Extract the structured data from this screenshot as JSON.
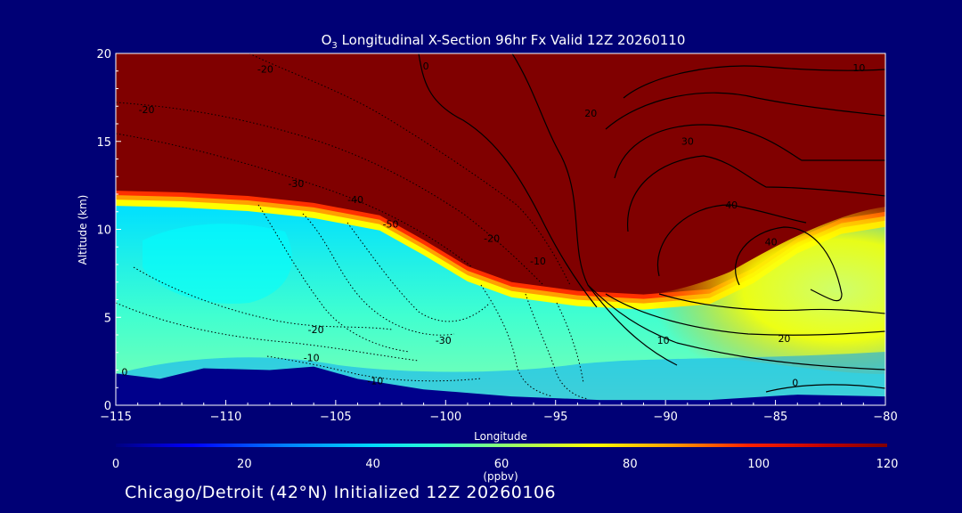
{
  "chart_data": {
    "type": "heatmap",
    "title_prefix": "O",
    "title_subscript": "3",
    "title_rest": " Longitudinal X-Section 96hr  Fx Valid 12Z 20260110",
    "xlabel": "Longitude",
    "ylabel": "Altitude (km)",
    "xlim": [
      -115,
      -80
    ],
    "ylim": [
      0,
      20
    ],
    "x_ticks": [
      -115,
      -110,
      -105,
      -100,
      -95,
      -90,
      -85,
      -80
    ],
    "x_tick_labels": [
      "−115",
      "−110",
      "−105",
      "−100",
      "−95",
      "−90",
      "−85",
      "−80"
    ],
    "y_ticks": [
      0,
      5,
      10,
      15,
      20
    ],
    "y_tick_labels": [
      "0",
      "5",
      "10",
      "15",
      "20"
    ],
    "colorbar": {
      "label": "(ppbv)",
      "range": [
        0,
        120
      ],
      "ticks": [
        0,
        20,
        40,
        60,
        80,
        100,
        120
      ],
      "tick_labels": [
        "0",
        "20",
        "40",
        "60",
        "80",
        "100",
        "120"
      ]
    },
    "colors": {
      "background": "#000075",
      "stratosphere": "#800000",
      "ground": "#00008b"
    },
    "tropopause": [
      {
        "x": -115,
        "y": 12.2
      },
      {
        "x": -112,
        "y": 12.1
      },
      {
        "x": -109,
        "y": 11.9
      },
      {
        "x": -106,
        "y": 11.5
      },
      {
        "x": -103,
        "y": 10.8
      },
      {
        "x": -101,
        "y": 9.4
      },
      {
        "x": -99,
        "y": 7.9
      },
      {
        "x": -97,
        "y": 7.0
      },
      {
        "x": -94,
        "y": 6.5
      },
      {
        "x": -91,
        "y": 6.3
      },
      {
        "x": -88,
        "y": 6.6
      },
      {
        "x": -86,
        "y": 7.8
      },
      {
        "x": -84,
        "y": 9.5
      },
      {
        "x": -82,
        "y": 10.6
      },
      {
        "x": -80,
        "y": 11.0
      }
    ],
    "terrain": [
      {
        "x": -115,
        "y": 1.8
      },
      {
        "x": -113,
        "y": 1.5
      },
      {
        "x": -111,
        "y": 2.1
      },
      {
        "x": -108,
        "y": 2.0
      },
      {
        "x": -106,
        "y": 2.2
      },
      {
        "x": -104,
        "y": 1.5
      },
      {
        "x": -101,
        "y": 0.9
      },
      {
        "x": -97,
        "y": 0.5
      },
      {
        "x": -93,
        "y": 0.3
      },
      {
        "x": -88,
        "y": 0.3
      },
      {
        "x": -84,
        "y": 0.6
      },
      {
        "x": -80,
        "y": 0.5
      }
    ],
    "contour_labels": [
      {
        "text": "-20",
        "x": -113.6,
        "y": 16.6
      },
      {
        "text": "-20",
        "x": -108.2,
        "y": 18.9
      },
      {
        "text": "0",
        "x": -100.9,
        "y": 19.1
      },
      {
        "text": "10",
        "x": -81.2,
        "y": 19.0
      },
      {
        "text": "20",
        "x": -93.4,
        "y": 16.4
      },
      {
        "text": "30",
        "x": -89.0,
        "y": 14.8
      },
      {
        "text": "40",
        "x": -87.0,
        "y": 11.2
      },
      {
        "text": "40",
        "x": -85.2,
        "y": 9.1
      },
      {
        "text": "-30",
        "x": -106.8,
        "y": 12.4
      },
      {
        "text": "-40",
        "x": -104.1,
        "y": 11.5
      },
      {
        "text": "-50",
        "x": -102.5,
        "y": 10.1
      },
      {
        "text": "-20",
        "x": -97.9,
        "y": 9.3
      },
      {
        "text": "-10",
        "x": -95.8,
        "y": 8.0
      },
      {
        "text": "-20",
        "x": -105.9,
        "y": 4.1
      },
      {
        "text": "-10",
        "x": -106.1,
        "y": 2.5
      },
      {
        "text": "-10",
        "x": -103.2,
        "y": 1.2
      },
      {
        "text": "-30",
        "x": -100.1,
        "y": 3.5
      },
      {
        "text": "0",
        "x": -114.6,
        "y": 1.7
      },
      {
        "text": "10",
        "x": -90.1,
        "y": 3.5
      },
      {
        "text": "20",
        "x": -84.6,
        "y": 3.6
      },
      {
        "text": "0",
        "x": -84.1,
        "y": 1.1
      }
    ]
  },
  "footer": "Chicago/Detroit (42°N) Initialized 12Z 20260106"
}
